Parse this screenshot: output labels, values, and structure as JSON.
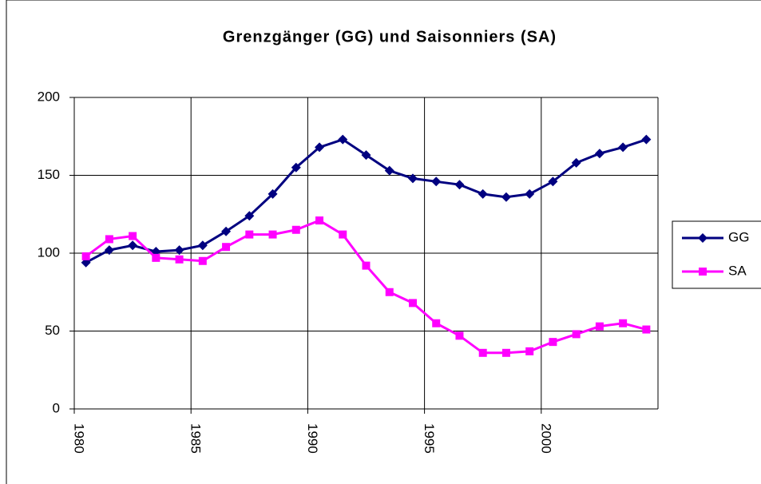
{
  "chart_data": {
    "type": "line",
    "title": "Grenzgänger (GG) und Saisonniers (SA)",
    "categories": [
      "1980",
      null,
      null,
      null,
      null,
      "1985",
      null,
      null,
      null,
      null,
      "1990",
      null,
      null,
      null,
      null,
      "1995",
      null,
      null,
      null,
      null,
      "2000",
      null,
      null,
      null,
      null
    ],
    "series": [
      {
        "name": "GG",
        "color": "#000080",
        "marker": "diamond",
        "values": [
          94,
          102,
          105,
          101,
          102,
          105,
          114,
          124,
          138,
          155,
          168,
          173,
          163,
          153,
          148,
          146,
          144,
          138,
          136,
          138,
          146,
          158,
          164,
          168,
          173
        ]
      },
      {
        "name": "SA",
        "color": "#ff00ff",
        "marker": "square",
        "values": [
          98,
          109,
          111,
          97,
          96,
          95,
          104,
          112,
          112,
          115,
          121,
          112,
          92,
          75,
          68,
          55,
          47,
          36,
          36,
          37,
          43,
          48,
          53,
          55,
          51
        ]
      }
    ],
    "ylim": [
      0,
      200
    ],
    "yticks": [
      0,
      50,
      100,
      150,
      200
    ],
    "grid": true,
    "legend": "right"
  }
}
